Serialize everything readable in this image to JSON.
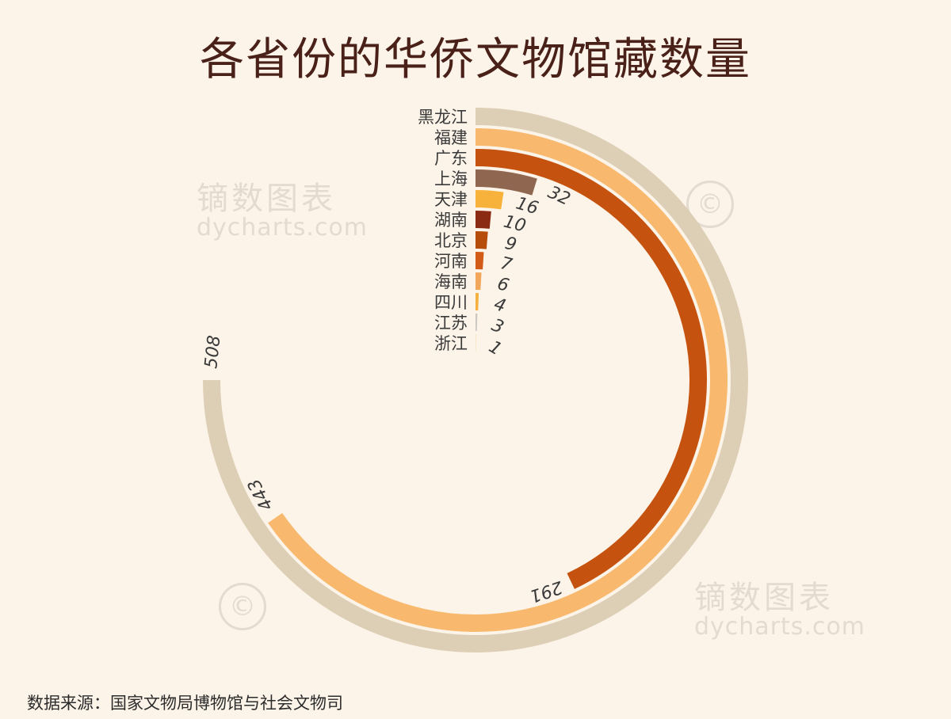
{
  "title": "各省份的华侨文物馆藏数量",
  "source": "数据来源：国家文物局博物馆与社会文物司",
  "watermark": {
    "cn": "镝数图表",
    "en": "dycharts.com",
    "mark": "©"
  },
  "chart_data": {
    "type": "radial-bar",
    "categories": [
      "黑龙江",
      "福建",
      "广东",
      "上海",
      "天津",
      "湖南",
      "北京",
      "河南",
      "海南",
      "四川",
      "江苏",
      "浙江"
    ],
    "values": [
      508,
      443,
      291,
      32,
      16,
      10,
      9,
      7,
      6,
      4,
      3,
      1
    ],
    "colors": [
      "#ddcfb6",
      "#f8b96e",
      "#c6520f",
      "#8f6650",
      "#f7b23b",
      "#8b2b13",
      "#b64d0a",
      "#d25c17",
      "#f2a65a",
      "#f6b03e",
      "#ccc7c0",
      "#efd5a4"
    ]
  }
}
